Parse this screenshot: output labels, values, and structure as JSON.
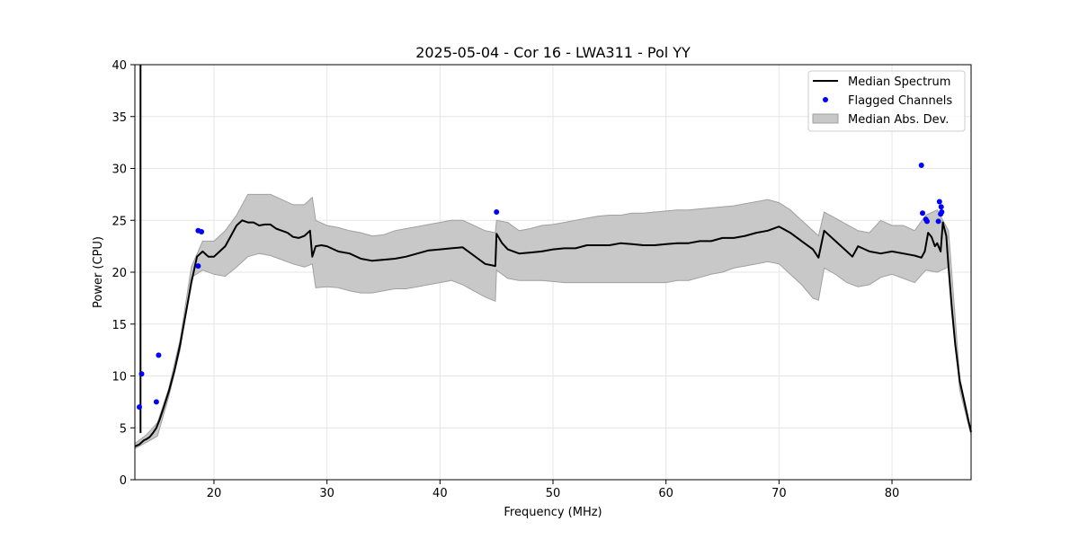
{
  "chart_data": {
    "type": "line",
    "title": "2025-05-04 - Cor 16 - LWA311 - Pol YY",
    "xlabel": "Frequency (MHz)",
    "ylabel": "Power (CPU)",
    "xlim": [
      13.0,
      87.0
    ],
    "ylim": [
      0,
      40
    ],
    "x_ticks": [
      20,
      30,
      40,
      50,
      60,
      70,
      80
    ],
    "y_ticks": [
      0,
      5,
      10,
      15,
      20,
      25,
      30,
      35,
      40
    ],
    "grid": true,
    "legend_position": "top-right",
    "legend": [
      "Median Spectrum",
      "Flagged Channels",
      "Median Abs. Dev."
    ],
    "colors": {
      "median": "#000000",
      "flagged": "#0000ff",
      "band": "#c8c8c8",
      "band_edge": "#a0a0a0"
    },
    "series": [
      {
        "name": "Median Spectrum",
        "x": [
          13.0,
          13.4,
          13.6,
          13.8,
          14.0,
          14.3,
          14.6,
          14.9,
          15.2,
          15.5,
          16.0,
          16.5,
          17.0,
          17.5,
          18.0,
          18.5,
          19.0,
          19.5,
          20.0,
          20.5,
          21.0,
          21.5,
          22.0,
          22.5,
          23.0,
          23.5,
          24.0,
          24.5,
          25.0,
          25.5,
          26.0,
          26.5,
          27.0,
          27.5,
          28.0,
          28.5,
          28.7,
          29.0,
          29.5,
          30.0,
          31.0,
          32.0,
          33.0,
          34.0,
          35.0,
          36.0,
          37.0,
          38.0,
          39.0,
          40.0,
          41.0,
          42.0,
          43.0,
          44.0,
          44.9,
          45.0,
          45.5,
          46.0,
          47.0,
          48.0,
          49.0,
          50.0,
          51.0,
          52.0,
          53.0,
          54.0,
          55.0,
          56.0,
          57.0,
          58.0,
          59.0,
          60.0,
          61.0,
          62.0,
          63.0,
          64.0,
          65.0,
          66.0,
          67.0,
          68.0,
          69.0,
          70.0,
          71.0,
          72.0,
          73.0,
          73.5,
          74.0,
          75.0,
          76.0,
          76.5,
          77.0,
          78.0,
          79.0,
          80.0,
          81.0,
          82.0,
          82.6,
          82.9,
          83.2,
          83.5,
          83.8,
          84.0,
          84.3,
          84.5,
          84.8,
          85.0,
          85.3,
          85.6,
          86.0,
          86.4,
          86.8,
          87.0
        ],
        "y": [
          3.2,
          3.4,
          3.6,
          3.8,
          3.9,
          4.1,
          4.5,
          5.0,
          5.8,
          6.8,
          8.5,
          10.5,
          13.0,
          16.0,
          19.0,
          21.5,
          22.0,
          21.5,
          21.5,
          22.0,
          22.5,
          23.5,
          24.5,
          25.0,
          24.8,
          24.8,
          24.5,
          24.6,
          24.6,
          24.2,
          24.0,
          23.8,
          23.4,
          23.3,
          23.5,
          24.0,
          21.5,
          22.5,
          22.6,
          22.5,
          22.0,
          21.8,
          21.3,
          21.1,
          21.2,
          21.3,
          21.5,
          21.8,
          22.1,
          22.2,
          22.3,
          22.4,
          21.6,
          20.8,
          20.6,
          23.7,
          22.8,
          22.2,
          21.8,
          21.9,
          22.0,
          22.2,
          22.3,
          22.3,
          22.6,
          22.6,
          22.6,
          22.8,
          22.7,
          22.6,
          22.6,
          22.7,
          22.8,
          22.8,
          23.0,
          23.0,
          23.3,
          23.3,
          23.5,
          23.8,
          24.0,
          24.4,
          23.8,
          23.0,
          22.2,
          21.4,
          24.0,
          23.0,
          22.0,
          21.5,
          22.5,
          22.0,
          21.8,
          22.0,
          21.8,
          21.6,
          21.4,
          22.0,
          23.8,
          23.4,
          22.5,
          22.8,
          22.0,
          24.8,
          23.5,
          20.5,
          16.5,
          13.0,
          9.5,
          7.5,
          5.5,
          4.6
        ]
      },
      {
        "name": "Median Abs. Dev.",
        "x": [
          13.0,
          14.0,
          15.0,
          16.0,
          17.0,
          18.0,
          19.0,
          20.0,
          21.0,
          22.0,
          23.0,
          24.0,
          25.0,
          26.0,
          27.0,
          28.0,
          28.7,
          29.0,
          30.0,
          31.0,
          32.0,
          33.0,
          34.0,
          35.0,
          36.0,
          37.0,
          38.0,
          39.0,
          40.0,
          41.0,
          42.0,
          43.0,
          44.0,
          44.9,
          45.0,
          46.0,
          47.0,
          48.0,
          49.0,
          50.0,
          51.0,
          52.0,
          53.0,
          54.0,
          55.0,
          56.0,
          57.0,
          58.0,
          59.0,
          60.0,
          61.0,
          62.0,
          63.0,
          64.0,
          65.0,
          66.0,
          67.0,
          68.0,
          69.0,
          70.0,
          71.0,
          72.0,
          73.0,
          73.5,
          74.0,
          75.0,
          76.0,
          77.0,
          78.0,
          79.0,
          80.0,
          81.0,
          82.0,
          83.0,
          84.0,
          85.0,
          86.0,
          87.0
        ],
        "upper": [
          3.5,
          4.3,
          5.5,
          8.8,
          13.5,
          20.5,
          23.0,
          23.0,
          24.0,
          25.5,
          27.5,
          27.5,
          27.5,
          27.0,
          26.5,
          26.5,
          27.2,
          25.0,
          24.5,
          24.3,
          24.0,
          23.8,
          23.5,
          23.6,
          24.0,
          24.2,
          24.4,
          24.6,
          24.8,
          25.0,
          25.0,
          24.5,
          24.0,
          23.8,
          25.0,
          24.8,
          24.0,
          24.2,
          24.5,
          24.6,
          24.8,
          25.0,
          25.2,
          25.4,
          25.5,
          25.5,
          25.7,
          25.7,
          25.8,
          25.9,
          26.0,
          26.0,
          26.1,
          26.2,
          26.3,
          26.4,
          26.6,
          26.8,
          27.0,
          26.7,
          26.0,
          25.0,
          24.0,
          23.5,
          25.8,
          25.2,
          24.6,
          24.0,
          23.8,
          25.0,
          24.5,
          24.5,
          24.0,
          25.5,
          26.0,
          24.0,
          9.8,
          4.8
        ],
        "lower": [
          3.0,
          3.6,
          4.2,
          8.0,
          12.5,
          19.5,
          20.2,
          19.8,
          19.6,
          20.5,
          21.5,
          21.8,
          21.6,
          21.2,
          20.8,
          20.5,
          20.8,
          18.5,
          18.6,
          18.5,
          18.2,
          18.0,
          18.0,
          18.2,
          18.4,
          18.4,
          18.6,
          18.8,
          19.0,
          19.2,
          18.8,
          18.2,
          17.6,
          17.2,
          20.2,
          19.4,
          19.2,
          19.2,
          19.2,
          19.1,
          19.0,
          19.0,
          19.0,
          19.0,
          19.0,
          19.0,
          19.0,
          19.0,
          19.0,
          19.0,
          19.2,
          19.2,
          19.5,
          19.8,
          20.0,
          20.4,
          20.6,
          20.8,
          21.0,
          20.8,
          19.8,
          18.8,
          17.5,
          17.3,
          20.4,
          19.8,
          19.0,
          18.6,
          18.8,
          19.5,
          19.8,
          19.4,
          19.0,
          20.2,
          20.0,
          20.5,
          8.6,
          4.3
        ]
      },
      {
        "name": "Flagged Channels",
        "x": [
          13.4,
          13.6,
          14.9,
          15.1,
          18.6,
          18.6,
          18.9,
          45.0,
          82.6,
          82.7,
          83.0,
          83.1,
          84.1,
          84.2,
          84.3,
          84.35,
          84.4
        ],
        "y": [
          7.0,
          10.2,
          7.5,
          12.0,
          24.0,
          20.6,
          23.9,
          25.8,
          30.3,
          25.7,
          25.1,
          24.9,
          24.9,
          26.8,
          25.6,
          26.3,
          25.8
        ]
      }
    ]
  }
}
